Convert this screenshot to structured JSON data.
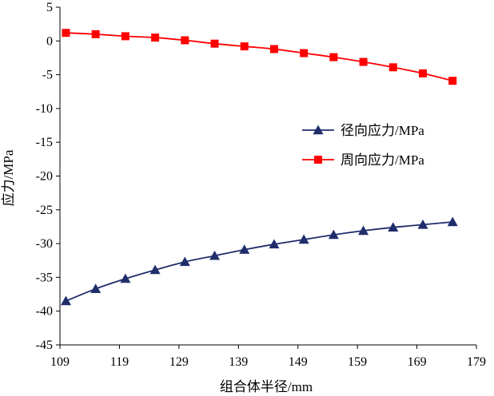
{
  "chart_data": {
    "type": "line",
    "title": "",
    "xlabel": "组合体半径/mm",
    "ylabel": "应力/MPa",
    "xlim": [
      109,
      179
    ],
    "ylim": [
      -45,
      5
    ],
    "x_ticks": [
      "109",
      "119",
      "129",
      "139",
      "149",
      "159",
      "169",
      "179"
    ],
    "y_ticks": [
      "5",
      "0",
      "-5",
      "-10",
      "-15",
      "-20",
      "-25",
      "-30",
      "-35",
      "-40",
      "-45"
    ],
    "grid": false,
    "legend_position": "right",
    "x": [
      110,
      115,
      120,
      125,
      130,
      135,
      140,
      145,
      150,
      155,
      160,
      165,
      170,
      175
    ],
    "series": [
      {
        "name": "径向应力/MPa",
        "color": "#1f2d6b",
        "marker": "triangle",
        "values": [
          -38.5,
          -36.7,
          -35.2,
          -33.9,
          -32.7,
          -31.8,
          -30.9,
          -30.1,
          -29.4,
          -28.7,
          -28.1,
          -27.6,
          -27.2,
          -26.8
        ]
      },
      {
        "name": "周向应力/MPa",
        "color": "#ff0000",
        "marker": "square",
        "values": [
          1.2,
          1.0,
          0.7,
          0.5,
          0.1,
          -0.4,
          -0.8,
          -1.2,
          -1.8,
          -2.4,
          -3.1,
          -3.9,
          -4.8,
          -5.9
        ]
      }
    ]
  }
}
